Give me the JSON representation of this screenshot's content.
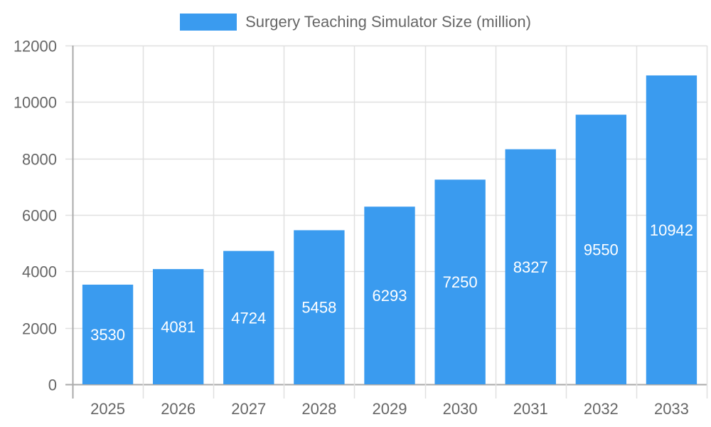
{
  "chart_data": {
    "type": "bar",
    "title": "",
    "xlabel": "",
    "ylabel": "",
    "categories": [
      "2025",
      "2026",
      "2027",
      "2028",
      "2029",
      "2030",
      "2031",
      "2032",
      "2033"
    ],
    "series": [
      {
        "name": "Surgery Teaching Simulator Size (million)",
        "values": [
          3530,
          4081,
          4724,
          5458,
          6293,
          7250,
          8327,
          9550,
          10942
        ],
        "color": "#3a9bef"
      }
    ],
    "ylim": [
      0,
      12000
    ],
    "yticks": [
      0,
      2000,
      4000,
      6000,
      8000,
      10000,
      12000
    ],
    "grid": true,
    "legend_position": "top",
    "data_labels": true
  },
  "legend": {
    "label": "Surgery Teaching Simulator Size (million)",
    "color": "#3a9bef"
  }
}
